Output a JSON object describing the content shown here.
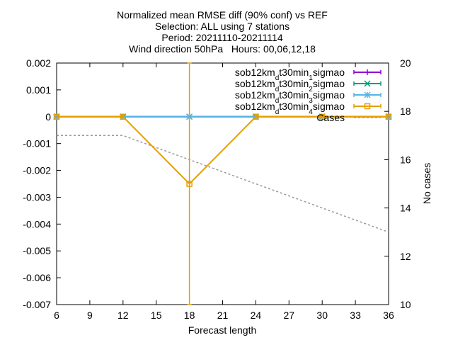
{
  "chart_data": {
    "type": "line",
    "title_lines": [
      "Normalized mean RMSE diff (90% conf) vs REF",
      "Selection: ALL using     7 stations",
      "Period: 20211110-20211114",
      "Wind direction 50hPa   Hours: 00,06,12,18"
    ],
    "xlabel": "Forecast length",
    "ylabel": "",
    "y2label": "No cases",
    "xlim": [
      6,
      36
    ],
    "ylim": [
      -0.007,
      0.002
    ],
    "y2lim": [
      10,
      20
    ],
    "xticks": [
      6,
      9,
      12,
      15,
      18,
      21,
      24,
      27,
      30,
      33,
      36
    ],
    "xtick_labels": [
      "6",
      "9",
      "12",
      "15",
      "18",
      "21",
      "24",
      "27",
      "30",
      "33",
      "36"
    ],
    "yticks": [
      0.002,
      0.001,
      0,
      -0.001,
      -0.002,
      -0.003,
      -0.004,
      -0.005,
      -0.006,
      -0.007
    ],
    "ytick_labels": [
      "0.002",
      "0.001",
      "0",
      "-0.001",
      "-0.002",
      "-0.003",
      "-0.004",
      "-0.005",
      "-0.006",
      "-0.007"
    ],
    "y2ticks": [
      20,
      18,
      16,
      14,
      12,
      10
    ],
    "y2tick_labels": [
      "20",
      "18",
      "16",
      "14",
      "12",
      "10"
    ],
    "legend_position": "top-right",
    "x": [
      6,
      12,
      18,
      24,
      30,
      36
    ],
    "series": [
      {
        "name_parts": [
          "sob12km",
          "d",
          "t30min",
          "1",
          "sigmao"
        ],
        "color": "#9400d3",
        "marker": "plus",
        "y": [
          0,
          0,
          0,
          0,
          0,
          0
        ]
      },
      {
        "name_parts": [
          "sob12km",
          "d",
          "t30min",
          "2",
          "sigmao"
        ],
        "color": "#009e73",
        "marker": "x",
        "y": [
          0,
          0,
          0,
          0,
          0,
          0
        ]
      },
      {
        "name_parts": [
          "sob12km",
          "d",
          "t30min",
          "3",
          "sigmao"
        ],
        "color": "#56b4e9",
        "marker": "star",
        "y": [
          0,
          0,
          0,
          0,
          0,
          0
        ]
      },
      {
        "name_parts": [
          "sob12km",
          "d",
          "t30min",
          "4",
          "sigmao"
        ],
        "color": "#e69f00",
        "marker": "square",
        "y": [
          0,
          0,
          -0.0025,
          0,
          0,
          0
        ],
        "errorbars": [
          {
            "x": 18,
            "low": -0.007,
            "high": 0.002
          }
        ]
      }
    ],
    "cases": {
      "name": "Cases",
      "color": "#999999",
      "axis": "y2",
      "x": [
        6,
        12,
        18,
        24,
        30,
        36
      ],
      "y": [
        17,
        17,
        16,
        15,
        14,
        13
      ]
    }
  }
}
